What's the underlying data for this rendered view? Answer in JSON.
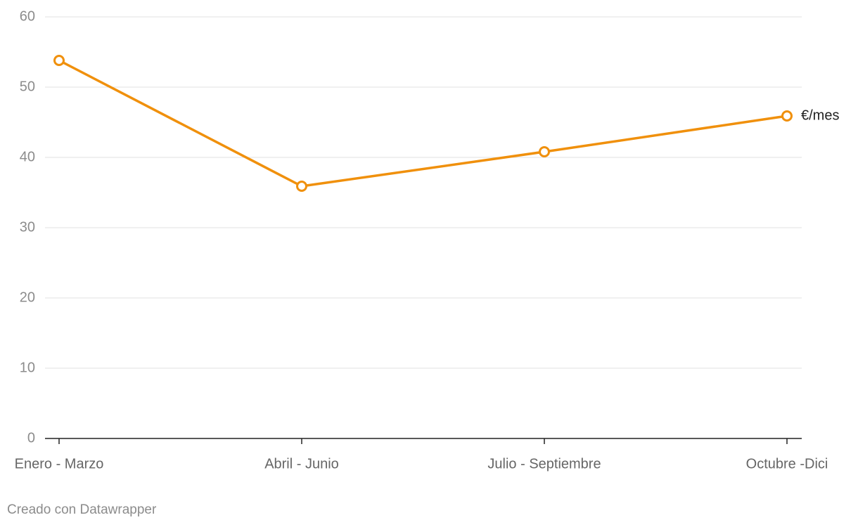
{
  "chart_data": {
    "type": "line",
    "categories": [
      "Enero - Marzo",
      "Abril - Junio",
      "Julio - Septiembre",
      "Octubre -Dici"
    ],
    "series": [
      {
        "name": "€/mes",
        "color": "#f0900c",
        "values": [
          53.8,
          35.9,
          40.8,
          45.9
        ]
      }
    ],
    "ylim": [
      0,
      60
    ],
    "yticks": [
      0,
      10,
      20,
      30,
      40,
      50,
      60
    ],
    "grid": true,
    "credit": "Creado con Datawrapper"
  }
}
